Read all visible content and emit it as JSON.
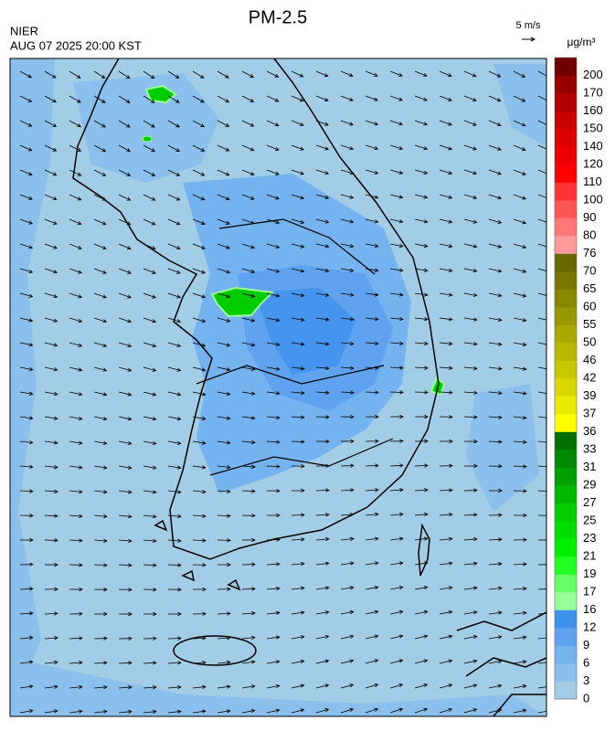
{
  "header": {
    "title": "PM-2.5",
    "source": "NIER",
    "datetime": "AUG 07 2025 20:00 KST",
    "wind_scale": "5 m/s"
  },
  "colorbar": {
    "unit": "μg/m³",
    "ticks": [
      0,
      3,
      6,
      9,
      12,
      16,
      17,
      19,
      21,
      23,
      25,
      27,
      29,
      31,
      33,
      36,
      37,
      39,
      42,
      46,
      50,
      55,
      60,
      65,
      70,
      76,
      80,
      90,
      100,
      110,
      120,
      140,
      150,
      160,
      170,
      200
    ],
    "colors": [
      "#a3cde6",
      "#8cc0ec",
      "#75b2f0",
      "#5fa3f0",
      "#3f91ee",
      "#99ff99",
      "#66ff66",
      "#22ff22",
      "#00ee00",
      "#00dd00",
      "#00cc00",
      "#00b800",
      "#00a000",
      "#008800",
      "#007000",
      "#ffff00",
      "#eaea00",
      "#d8d800",
      "#c8c800",
      "#b8b800",
      "#a8a800",
      "#989800",
      "#888800",
      "#787800",
      "#686800",
      "#ff9a9a",
      "#ff7777",
      "#ff5555",
      "#ff3333",
      "#ff0000",
      "#ee0000",
      "#dd0000",
      "#c80000",
      "#b00000",
      "#980000",
      "#700000"
    ]
  }
}
